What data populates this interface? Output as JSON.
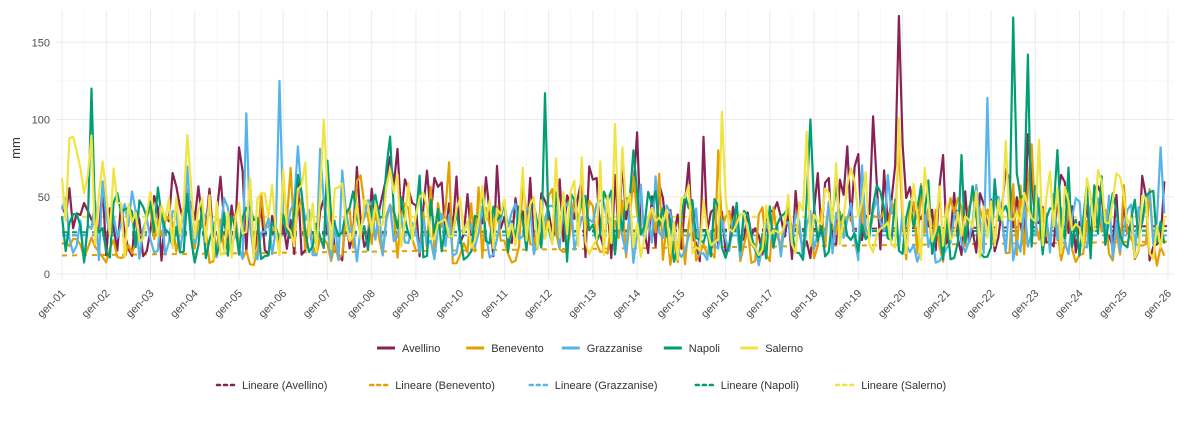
{
  "chart_data": {
    "type": "line",
    "title": "",
    "xlabel": "",
    "ylabel": "mm",
    "xlim": [
      2001,
      2026
    ],
    "ylim": [
      0,
      175
    ],
    "y_ticks": [
      0,
      50,
      100,
      150
    ],
    "x_tick_labels": [
      "gen-01",
      "gen-02",
      "gen-03",
      "gen-04",
      "gen-05",
      "gen-06",
      "gen-07",
      "gen-08",
      "gen-09",
      "gen-10",
      "gen-11",
      "gen-12",
      "gen-13",
      "gen-14",
      "gen-15",
      "gen-16",
      "gen-17",
      "gen-18",
      "gen-19",
      "gen-20",
      "gen-21",
      "gen-22",
      "gen-23",
      "gen-24",
      "gen-25",
      "gen-26"
    ],
    "grid": true,
    "legend_position": "bottom",
    "series": [
      {
        "name": "Avellino",
        "color": "#882255",
        "peaks": [
          [
            2019.9,
            167
          ],
          [
            2019.3,
            102
          ],
          [
            2005.0,
            82
          ],
          [
            2008.6,
            81
          ],
          [
            2013.7,
            73
          ],
          [
            2015.2,
            72
          ],
          [
            2010.8,
            70
          ],
          [
            2020.9,
            77
          ],
          [
            2022.9,
            62
          ],
          [
            2025.9,
            60
          ]
        ],
        "x": [
          2001,
          2003,
          2005,
          2007,
          2009,
          2011,
          2013,
          2015,
          2017,
          2019,
          2021,
          2023,
          2025,
          2026
        ],
        "y": [
          37,
          30,
          40,
          28,
          42,
          35,
          38,
          33,
          30,
          45,
          35,
          40,
          30,
          28
        ]
      },
      {
        "name": "Benevento",
        "color": "#E69F00",
        "peaks": [
          [
            2022.9,
            84
          ],
          [
            2019.9,
            82
          ],
          [
            2015.8,
            80
          ],
          [
            2012.1,
            55
          ],
          [
            2007.8,
            45
          ],
          [
            2025.6,
            55
          ]
        ],
        "x": [
          2001,
          2003,
          2005,
          2007,
          2009,
          2011,
          2013,
          2015,
          2017,
          2019,
          2021,
          2023,
          2025,
          2026
        ],
        "y": [
          15,
          25,
          20,
          22,
          28,
          25,
          30,
          22,
          25,
          30,
          28,
          35,
          25,
          20
        ]
      },
      {
        "name": "Grazzanise",
        "color": "#56B4E9",
        "peaks": [
          [
            2005.9,
            125
          ],
          [
            2005.2,
            104
          ],
          [
            2021.9,
            114
          ],
          [
            2025.8,
            82
          ],
          [
            2006.8,
            81
          ],
          [
            2007.3,
            67
          ],
          [
            2001.9,
            60
          ]
        ],
        "x": [
          2001,
          2003,
          2005,
          2007,
          2009,
          2011,
          2013,
          2015,
          2017,
          2019,
          2021,
          2023,
          2025,
          2026
        ],
        "y": [
          30,
          25,
          28,
          32,
          25,
          30,
          28,
          25,
          22,
          30,
          28,
          35,
          28,
          25
        ]
      },
      {
        "name": "Napoli",
        "color": "#009E73",
        "peaks": [
          [
            2001.7,
            120
          ],
          [
            2011.9,
            117
          ],
          [
            2022.5,
            166
          ],
          [
            2022.8,
            142
          ],
          [
            2017.9,
            100
          ],
          [
            2008.4,
            89
          ],
          [
            2013.9,
            80
          ],
          [
            2021.3,
            77
          ],
          [
            2003.2,
            56
          ]
        ],
        "x": [
          2001,
          2003,
          2005,
          2007,
          2009,
          2011,
          2013,
          2015,
          2017,
          2019,
          2021,
          2023,
          2025,
          2026
        ],
        "y": [
          25,
          30,
          28,
          35,
          30,
          28,
          32,
          30,
          28,
          35,
          30,
          40,
          35,
          30
        ]
      },
      {
        "name": "Salerno",
        "color": "#F0E442",
        "peaks": [
          [
            2003.8,
            90
          ],
          [
            2006.9,
            100
          ],
          [
            2015.9,
            105
          ],
          [
            2019.9,
            101
          ],
          [
            2022.3,
            86
          ],
          [
            2013.7,
            82
          ],
          [
            2017.8,
            92
          ],
          [
            2001.0,
            62
          ],
          [
            2024.9,
            63
          ]
        ],
        "x": [
          2001,
          2003,
          2005,
          2007,
          2009,
          2011,
          2013,
          2015,
          2017,
          2019,
          2021,
          2023,
          2025,
          2026
        ],
        "y": [
          62,
          30,
          40,
          35,
          38,
          32,
          45,
          35,
          30,
          40,
          35,
          38,
          40,
          35
        ]
      },
      {
        "name": "Lineare (Avellino)",
        "color": "#882255",
        "dashed": true,
        "x": [
          2001,
          2026
        ],
        "y": [
          25,
          31
        ]
      },
      {
        "name": "Lineare (Benevento)",
        "color": "#E69F00",
        "dashed": true,
        "x": [
          2001,
          2026
        ],
        "y": [
          12,
          21
        ]
      },
      {
        "name": "Lineare (Grazzanise)",
        "color": "#56B4E9",
        "dashed": true,
        "x": [
          2001,
          2026
        ],
        "y": [
          25,
          25
        ]
      },
      {
        "name": "Lineare (Napoli)",
        "color": "#009E73",
        "dashed": true,
        "x": [
          2001,
          2026
        ],
        "y": [
          27,
          28
        ]
      },
      {
        "name": "Lineare (Salerno)",
        "color": "#F0E442",
        "dashed": true,
        "x": [
          2001,
          2026
        ],
        "y": [
          37,
          37
        ]
      }
    ]
  }
}
